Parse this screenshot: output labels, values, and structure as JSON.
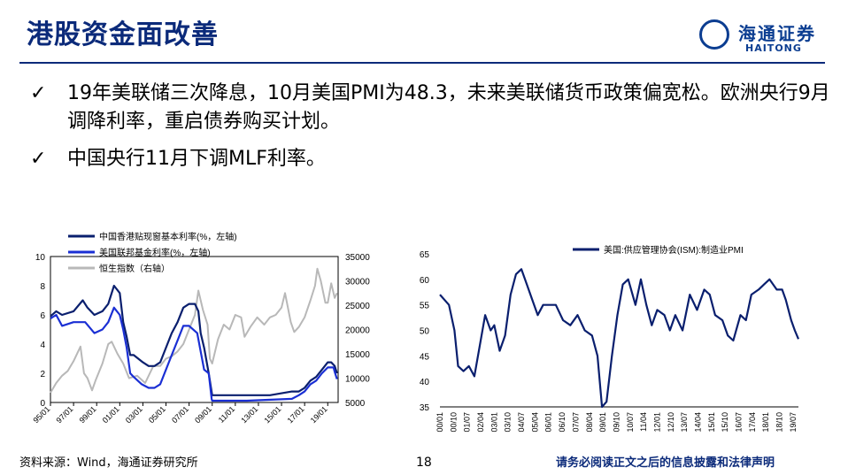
{
  "header": {
    "title": "港股资金面改善",
    "logo_cn": "海通证券",
    "logo_en": "HAITONG"
  },
  "bullets": [
    "19年美联储三次降息，10月美国PMI为48.3，未来美联储货币政策偏宽松。欧洲央行9月调降利率，重启债券购买计划。",
    "中国央行11月下调MLF利率。"
  ],
  "footer": {
    "source": "资料来源：Wind，海通证券研究所",
    "page": "18",
    "disclaimer": "请务必阅读正文之后的信息披露和法律声明"
  },
  "colors": {
    "hk_rate": "#0a1f6e",
    "fed_rate": "#1a2fd4",
    "hsi": "#b8b8b8",
    "pmi": "#0a1f6e",
    "title": "#0b2a7a"
  },
  "chart_data": [
    {
      "type": "line",
      "x_ticks": [
        "95/01",
        "97/01",
        "99/01",
        "01/01",
        "03/01",
        "05/01",
        "07/01",
        "09/01",
        "11/01",
        "13/01",
        "15/01",
        "17/01",
        "19/01"
      ],
      "y_left": {
        "ticks": [
          "0",
          "2",
          "4",
          "6",
          "8",
          "10"
        ],
        "lim": [
          0,
          10
        ]
      },
      "y_right": {
        "ticks": [
          "5000",
          "10000",
          "15000",
          "20000",
          "25000",
          "30000",
          "35000"
        ],
        "lim": [
          5000,
          35000
        ]
      },
      "legend_placement": "top-left",
      "series": [
        {
          "name": "中国香港贴现窗基本利率(%，左轴)",
          "axis": "left",
          "x": [
            1995.0,
            1995.5,
            1996.0,
            1997.0,
            1997.8,
            1998.2,
            1998.8,
            1999.5,
            2000.0,
            2000.5,
            2001.0,
            2001.3,
            2001.6,
            2001.9,
            2002.2,
            2003.0,
            2003.5,
            2004.0,
            2004.5,
            2005.0,
            2005.5,
            2006.0,
            2006.5,
            2007.0,
            2007.5,
            2007.8,
            2008.0,
            2008.3,
            2008.7,
            2008.9,
            2009.0,
            2010.0,
            2012.0,
            2014.0,
            2015.9,
            2016.5,
            2017.0,
            2017.5,
            2018.0,
            2018.5,
            2019.0,
            2019.3,
            2019.6,
            2019.8
          ],
          "y": [
            5.9,
            6.25,
            6.0,
            6.25,
            7.0,
            6.5,
            6.0,
            6.25,
            6.75,
            8.0,
            7.5,
            5.5,
            4.5,
            3.25,
            3.25,
            2.75,
            2.5,
            2.5,
            2.75,
            3.75,
            4.75,
            5.5,
            6.5,
            6.75,
            6.75,
            6.25,
            4.75,
            3.75,
            2.0,
            1.0,
            0.5,
            0.5,
            0.5,
            0.5,
            0.75,
            0.75,
            1.0,
            1.5,
            1.75,
            2.25,
            2.75,
            2.75,
            2.5,
            2.0
          ]
        },
        {
          "name": "美国联邦基金利率(%，左轴)",
          "axis": "left",
          "x": [
            1995.0,
            1995.5,
            1996.0,
            1997.0,
            1998.0,
            1998.8,
            1999.5,
            2000.0,
            2000.5,
            2001.0,
            2001.3,
            2001.6,
            2001.9,
            2002.2,
            2002.9,
            2003.5,
            2004.0,
            2004.5,
            2005.0,
            2005.5,
            2006.0,
            2006.5,
            2007.0,
            2007.7,
            2008.0,
            2008.3,
            2008.7,
            2008.95,
            2009.0,
            2012.0,
            2015.9,
            2016.5,
            2017.0,
            2017.5,
            2018.0,
            2018.5,
            2019.0,
            2019.5,
            2019.6,
            2019.8
          ],
          "y": [
            5.75,
            6.0,
            5.25,
            5.5,
            5.5,
            4.75,
            5.0,
            5.5,
            6.5,
            6.0,
            5.0,
            3.75,
            2.0,
            1.75,
            1.25,
            1.0,
            1.0,
            1.25,
            2.25,
            3.25,
            4.25,
            5.25,
            5.25,
            4.75,
            3.5,
            2.25,
            2.0,
            0.25,
            0.12,
            0.12,
            0.25,
            0.5,
            0.75,
            1.25,
            1.5,
            2.0,
            2.4,
            2.4,
            2.1,
            1.6
          ]
        },
        {
          "name": "恒生指数（右轴）",
          "axis": "right",
          "x": [
            1995.0,
            1995.5,
            1996.0,
            1996.5,
            1997.0,
            1997.6,
            1997.9,
            1998.2,
            1998.6,
            1998.9,
            1999.5,
            2000.0,
            2000.3,
            2000.8,
            2001.3,
            2001.8,
            2002.5,
            2003.2,
            2003.9,
            2004.5,
            2005.0,
            2005.5,
            2006.0,
            2006.5,
            2007.0,
            2007.5,
            2007.8,
            2008.2,
            2008.6,
            2008.8,
            2009.0,
            2009.5,
            2010.0,
            2010.5,
            2011.0,
            2011.5,
            2011.8,
            2012.3,
            2012.9,
            2013.5,
            2014.0,
            2014.5,
            2015.0,
            2015.3,
            2015.8,
            2016.1,
            2016.5,
            2017.0,
            2017.5,
            2017.9,
            2018.1,
            2018.4,
            2018.8,
            2019.0,
            2019.3,
            2019.6,
            2019.8
          ],
          "y": [
            7000,
            9000,
            10500,
            11500,
            13500,
            16500,
            11000,
            10000,
            7500,
            9500,
            13000,
            17000,
            17500,
            15000,
            13000,
            10000,
            10500,
            9000,
            12500,
            12500,
            14000,
            14500,
            15500,
            17000,
            20000,
            23000,
            28000,
            24000,
            21000,
            14000,
            13000,
            18000,
            21000,
            20000,
            23000,
            22500,
            18500,
            20500,
            22500,
            21000,
            22500,
            23000,
            24500,
            27500,
            21500,
            19500,
            20500,
            22500,
            26000,
            29000,
            32500,
            30000,
            25500,
            25500,
            29500,
            26500,
            27500
          ]
        }
      ]
    },
    {
      "type": "line",
      "x_ticks": [
        "00/01",
        "00/10",
        "01/07",
        "02/04",
        "03/01",
        "03/10",
        "04/07",
        "05/04",
        "06/01",
        "06/10",
        "07/07",
        "08/04",
        "09/01",
        "09/10",
        "10/07",
        "11/04",
        "12/01",
        "12/10",
        "13/07",
        "14/04",
        "15/01",
        "15/10",
        "16/07",
        "17/04",
        "18/01",
        "18/10",
        "19/07"
      ],
      "y": {
        "ticks": [
          "35",
          "40",
          "45",
          "50",
          "55",
          "60",
          "65"
        ],
        "lim": [
          35,
          65
        ]
      },
      "legend_placement": "top-right",
      "series": [
        {
          "name": "美国:供应管理协会(ISM):制造业PMI",
          "x": [
            2000.0,
            2000.5,
            2000.8,
            2001.0,
            2001.3,
            2001.6,
            2001.9,
            2002.2,
            2002.5,
            2002.8,
            2003.0,
            2003.3,
            2003.6,
            2003.9,
            2004.2,
            2004.5,
            2004.8,
            2005.1,
            2005.4,
            2005.7,
            2006.0,
            2006.4,
            2006.8,
            2007.2,
            2007.6,
            2008.0,
            2008.4,
            2008.7,
            2008.95,
            2009.2,
            2009.5,
            2009.8,
            2010.1,
            2010.4,
            2010.8,
            2011.1,
            2011.4,
            2011.7,
            2012.0,
            2012.4,
            2012.7,
            2013.0,
            2013.4,
            2013.8,
            2014.2,
            2014.6,
            2014.9,
            2015.2,
            2015.6,
            2015.9,
            2016.2,
            2016.6,
            2016.9,
            2017.2,
            2017.6,
            2017.9,
            2018.2,
            2018.6,
            2018.9,
            2019.1,
            2019.4,
            2019.6,
            2019.8
          ],
          "y": [
            57,
            55,
            50,
            43,
            42,
            43,
            41,
            47,
            53,
            50,
            51,
            46,
            49,
            57,
            61,
            62,
            59,
            56,
            53,
            55,
            55,
            55,
            52,
            51,
            53,
            50,
            49,
            45,
            35,
            36,
            45,
            53,
            59,
            60,
            55,
            60,
            55,
            51,
            54,
            53,
            50,
            53,
            50,
            57,
            54,
            58,
            57,
            53,
            52,
            49,
            48,
            53,
            52,
            57,
            58,
            59,
            60,
            58,
            58,
            56,
            52,
            50,
            48.3
          ]
        }
      ]
    }
  ]
}
